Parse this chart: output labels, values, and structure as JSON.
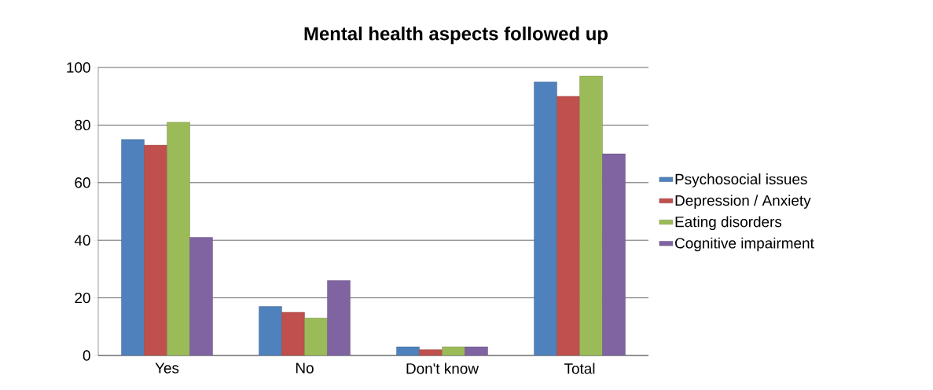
{
  "chart_data": {
    "type": "bar",
    "title": "Mental health aspects followed up",
    "categories": [
      "Yes",
      "No",
      "Don't know",
      "Total"
    ],
    "series": [
      {
        "name": "Psychosocial issues",
        "color": "#4f81bd",
        "values": [
          75,
          17,
          3,
          95
        ]
      },
      {
        "name": "Depression / Anxiety",
        "color": "#c0504d",
        "values": [
          73,
          15,
          2,
          90
        ]
      },
      {
        "name": "Eating disorders",
        "color": "#9bbb59",
        "values": [
          81,
          13,
          3,
          97
        ]
      },
      {
        "name": "Cognitive impairment",
        "color": "#8064a2",
        "values": [
          41,
          26,
          3,
          70
        ]
      }
    ],
    "ylim": [
      0,
      100
    ],
    "yticks": [
      0,
      20,
      40,
      60,
      80,
      100
    ],
    "grid": "y",
    "legend": "right"
  }
}
